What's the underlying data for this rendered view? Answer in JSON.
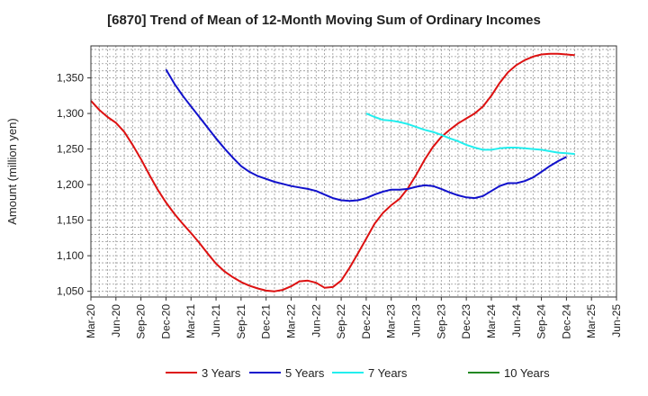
{
  "chart_data": {
    "type": "line",
    "title": "[6870]  Trend of Mean of 12-Month Moving Sum of Ordinary Incomes",
    "xlabel": "",
    "ylabel": "Amount (million yen)",
    "ylim": [
      1042,
      1395
    ],
    "yticks": [
      1050,
      1100,
      1150,
      1200,
      1250,
      1300,
      1350
    ],
    "ytick_labels": [
      "1,050",
      "1,100",
      "1,150",
      "1,200",
      "1,250",
      "1,300",
      "1,350"
    ],
    "x_range": [
      0,
      63
    ],
    "xticks": [
      {
        "i": 0,
        "label": "Mar-20"
      },
      {
        "i": 3,
        "label": "Jun-20"
      },
      {
        "i": 6,
        "label": "Sep-20"
      },
      {
        "i": 9,
        "label": "Dec-20"
      },
      {
        "i": 12,
        "label": "Mar-21"
      },
      {
        "i": 15,
        "label": "Jun-21"
      },
      {
        "i": 18,
        "label": "Sep-21"
      },
      {
        "i": 21,
        "label": "Dec-21"
      },
      {
        "i": 24,
        "label": "Mar-22"
      },
      {
        "i": 27,
        "label": "Jun-22"
      },
      {
        "i": 30,
        "label": "Sep-22"
      },
      {
        "i": 33,
        "label": "Dec-22"
      },
      {
        "i": 36,
        "label": "Mar-23"
      },
      {
        "i": 39,
        "label": "Jun-23"
      },
      {
        "i": 42,
        "label": "Sep-23"
      },
      {
        "i": 45,
        "label": "Dec-23"
      },
      {
        "i": 48,
        "label": "Mar-24"
      },
      {
        "i": 51,
        "label": "Jun-24"
      },
      {
        "i": 54,
        "label": "Sep-24"
      },
      {
        "i": 57,
        "label": "Dec-24"
      },
      {
        "i": 60,
        "label": "Mar-25"
      },
      {
        "i": 63,
        "label": "Jun-25"
      }
    ],
    "grid": true,
    "series": [
      {
        "name": "3 Years",
        "color": "#dd1111",
        "start": 0,
        "values": [
          1318,
          1305,
          1295,
          1287,
          1274,
          1256,
          1236,
          1214,
          1193,
          1175,
          1159,
          1145,
          1132,
          1118,
          1103,
          1089,
          1078,
          1070,
          1063,
          1058,
          1054,
          1051,
          1050,
          1052,
          1057,
          1064,
          1065,
          1062,
          1055,
          1056,
          1065,
          1083,
          1103,
          1124,
          1145,
          1160,
          1171,
          1180,
          1195,
          1214,
          1235,
          1253,
          1267,
          1277,
          1286,
          1293,
          1300,
          1310,
          1325,
          1343,
          1358,
          1368,
          1375,
          1380,
          1383,
          1384,
          1384,
          1383,
          1382
        ]
      },
      {
        "name": "5 Years",
        "color": "#1111cc",
        "start": 9,
        "values": [
          1362,
          1342,
          1325,
          1310,
          1295,
          1280,
          1265,
          1251,
          1238,
          1226,
          1218,
          1212,
          1208,
          1204,
          1201,
          1198,
          1196,
          1194,
          1191,
          1186,
          1181,
          1178,
          1177,
          1178,
          1181,
          1186,
          1190,
          1193,
          1193,
          1194,
          1197,
          1199,
          1198,
          1194,
          1189,
          1185,
          1182,
          1181,
          1184,
          1191,
          1198,
          1202,
          1202,
          1205,
          1210,
          1218,
          1226,
          1233,
          1239
        ]
      },
      {
        "name": "7 Years",
        "color": "#22eeee",
        "start": 33,
        "values": [
          1300,
          1295,
          1291,
          1290,
          1288,
          1285,
          1281,
          1277,
          1274,
          1270,
          1265,
          1261,
          1256,
          1252,
          1249,
          1249,
          1251,
          1252,
          1252,
          1251,
          1250,
          1249,
          1247,
          1245,
          1244,
          1243
        ]
      },
      {
        "name": "10 Years",
        "color": "#228822",
        "start": 0,
        "values": []
      }
    ],
    "legend_position": "bottom"
  }
}
